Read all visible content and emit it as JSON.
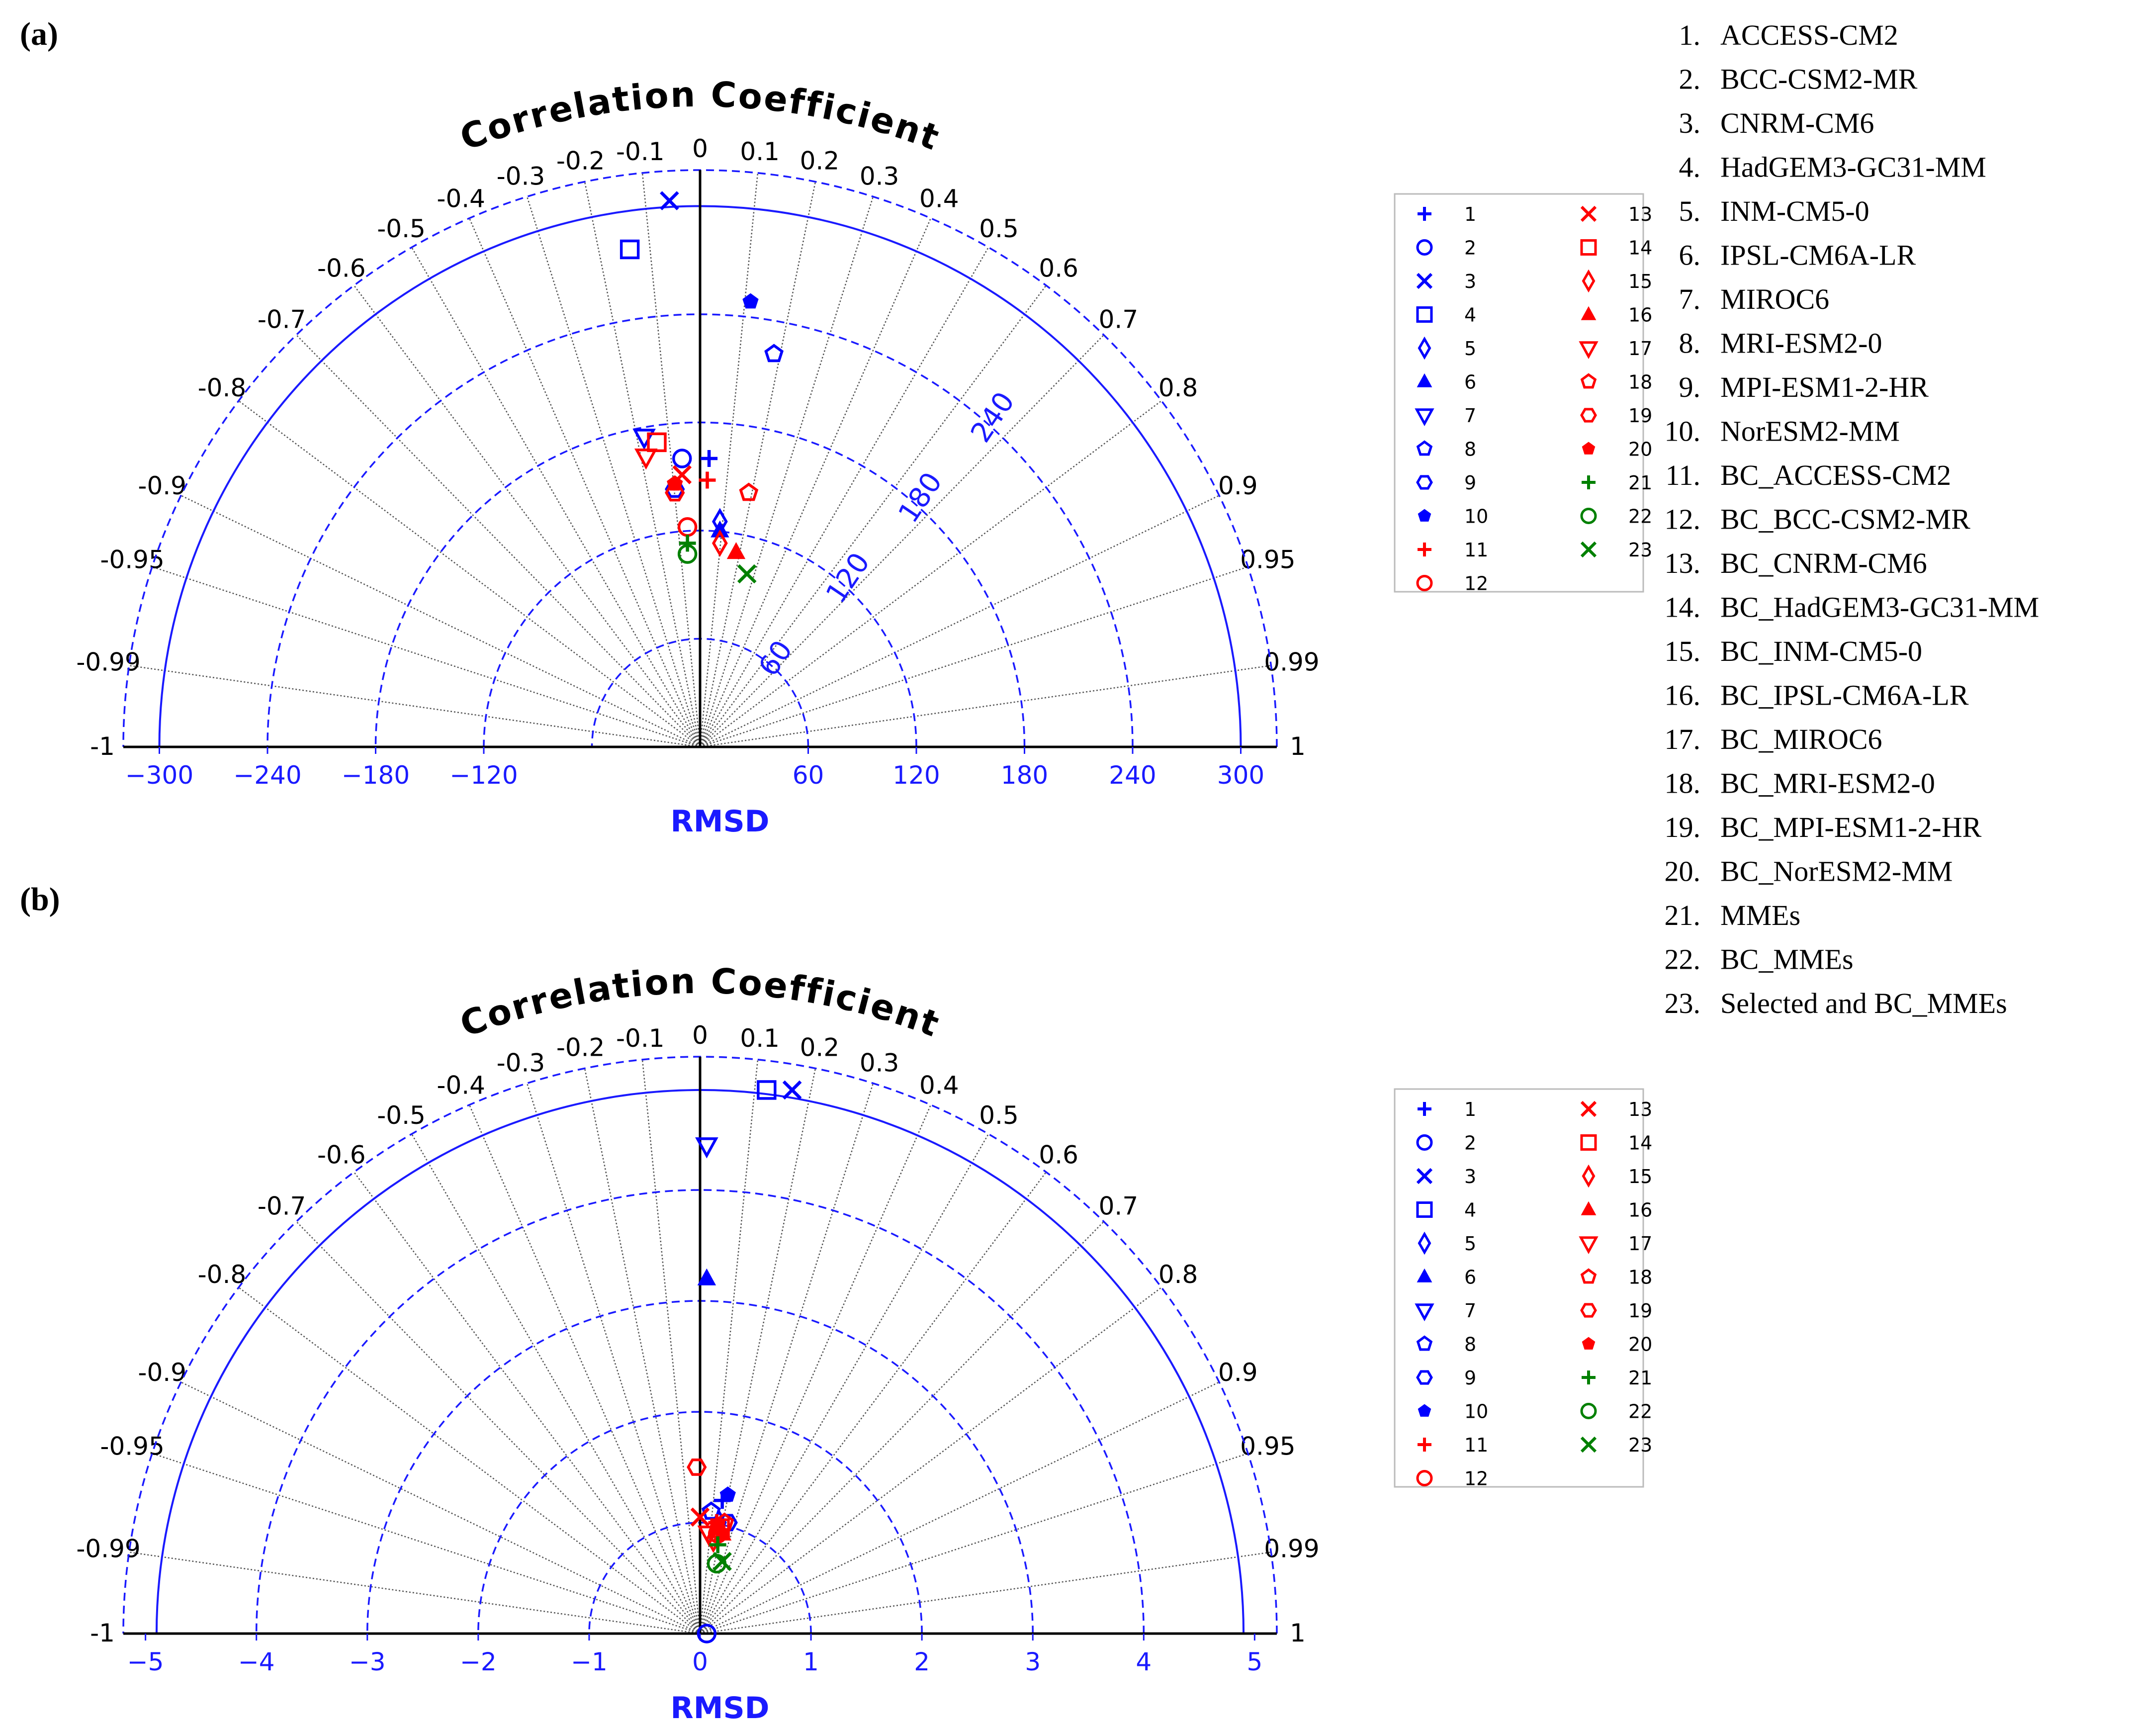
{
  "panels": [
    {
      "label": "(a)",
      "cc_title": "Correlation Coefficient",
      "rmsd_title": "RMSD",
      "arc_labels": [
        "60",
        "120",
        "180",
        "240"
      ]
    },
    {
      "label": "(b)",
      "cc_title": "Correlation Coefficient",
      "rmsd_title": "RMSD",
      "arc_labels": []
    }
  ],
  "model_list": [
    {
      "num": "1.",
      "name": "ACCESS-CM2"
    },
    {
      "num": "2.",
      "name": "BCC-CSM2-MR"
    },
    {
      "num": "3.",
      "name": "CNRM-CM6"
    },
    {
      "num": "4.",
      "name": "HadGEM3-GC31-MM"
    },
    {
      "num": "5.",
      "name": "INM-CM5-0"
    },
    {
      "num": "6.",
      "name": "IPSL-CM6A-LR"
    },
    {
      "num": "7.",
      "name": "MIROC6"
    },
    {
      "num": "8.",
      "name": "MRI-ESM2-0"
    },
    {
      "num": "9.",
      "name": "MPI-ESM1-2-HR"
    },
    {
      "num": "10.",
      "name": "NorESM2-MM"
    },
    {
      "num": "11.",
      "name": "BC_ACCESS-CM2"
    },
    {
      "num": "12.",
      "name": "BC_BCC-CSM2-MR"
    },
    {
      "num": "13.",
      "name": "BC_CNRM-CM6"
    },
    {
      "num": "14.",
      "name": "BC_HadGEM3-GC31-MM"
    },
    {
      "num": "15.",
      "name": "BC_INM-CM5-0"
    },
    {
      "num": "16.",
      "name": "BC_IPSL-CM6A-LR"
    },
    {
      "num": "17.",
      "name": "BC_MIROC6"
    },
    {
      "num": "18.",
      "name": "BC_MRI-ESM2-0"
    },
    {
      "num": "19.",
      "name": "BC_MPI-ESM1-2-HR"
    },
    {
      "num": "20.",
      "name": "BC_NorESM2-MM"
    },
    {
      "num": "21.",
      "name": "MMEs"
    },
    {
      "num": "22.",
      "name": "BC_MMEs"
    },
    {
      "num": "23.",
      "name": "Selected and BC_MMEs"
    }
  ],
  "legend": [
    {
      "label": "1",
      "marker": "plus",
      "color": "#0000ff"
    },
    {
      "label": "2",
      "marker": "circle",
      "color": "#0000ff"
    },
    {
      "label": "3",
      "marker": "x",
      "color": "#0000ff"
    },
    {
      "label": "4",
      "marker": "square",
      "color": "#0000ff"
    },
    {
      "label": "5",
      "marker": "diamond",
      "color": "#0000ff"
    },
    {
      "label": "6",
      "marker": "triangle-up",
      "color": "#0000ff"
    },
    {
      "label": "7",
      "marker": "triangle-down",
      "color": "#0000ff"
    },
    {
      "label": "8",
      "marker": "pentagon",
      "color": "#0000ff"
    },
    {
      "label": "9",
      "marker": "hexagon",
      "color": "#0000ff"
    },
    {
      "label": "10",
      "marker": "pentagon-filled",
      "color": "#0000ff"
    },
    {
      "label": "11",
      "marker": "plus",
      "color": "#ff0000"
    },
    {
      "label": "12",
      "marker": "circle",
      "color": "#ff0000"
    },
    {
      "label": "13",
      "marker": "x",
      "color": "#ff0000"
    },
    {
      "label": "14",
      "marker": "square",
      "color": "#ff0000"
    },
    {
      "label": "15",
      "marker": "diamond",
      "color": "#ff0000"
    },
    {
      "label": "16",
      "marker": "triangle-up",
      "color": "#ff0000"
    },
    {
      "label": "17",
      "marker": "triangle-down",
      "color": "#ff0000"
    },
    {
      "label": "18",
      "marker": "pentagon",
      "color": "#ff0000"
    },
    {
      "label": "19",
      "marker": "hexagon",
      "color": "#ff0000"
    },
    {
      "label": "20",
      "marker": "pentagon-filled",
      "color": "#ff0000"
    },
    {
      "label": "21",
      "marker": "plus",
      "color": "#008000"
    },
    {
      "label": "22",
      "marker": "circle",
      "color": "#008000"
    },
    {
      "label": "23",
      "marker": "x",
      "color": "#008000"
    }
  ],
  "chart_data": [
    {
      "type": "scatter",
      "subtype": "taylor-diagram",
      "title": "Correlation Coefficient",
      "xlabel": "RMSD",
      "std_max": 320,
      "std_ref_arc": 300,
      "std_dashed_arcs": [
        60,
        120,
        180,
        240,
        320
      ],
      "rmsd_arcs": [
        60,
        120,
        180,
        240
      ],
      "x_ticks": [
        "−300",
        "−240",
        "−180",
        "−120",
        "60",
        "120",
        "180",
        "240",
        "300"
      ],
      "x_tick_values": [
        -300,
        -240,
        -180,
        -120,
        60,
        120,
        180,
        240,
        300
      ],
      "cc_ticks": [
        "-1",
        "-0.99",
        "-0.95",
        "-0.9",
        "-0.8",
        "-0.7",
        "-0.6",
        "-0.5",
        "-0.4",
        "-0.3",
        "-0.2",
        "-0.1",
        "0",
        "0.1",
        "0.2",
        "0.3",
        "0.4",
        "0.5",
        "0.6",
        "0.7",
        "0.8",
        "0.9",
        "0.95",
        "0.99",
        "1"
      ],
      "cc_values": [
        -1,
        -0.99,
        -0.95,
        -0.9,
        -0.8,
        -0.7,
        -0.6,
        -0.5,
        -0.4,
        -0.3,
        -0.2,
        -0.1,
        0,
        0.1,
        0.2,
        0.3,
        0.4,
        0.5,
        0.6,
        0.7,
        0.8,
        0.9,
        0.95,
        0.99,
        1
      ],
      "grid": true,
      "legend_position": "right",
      "points": [
        {
          "id": 1,
          "x": 5,
          "y": 160
        },
        {
          "id": 2,
          "x": -10,
          "y": 160
        },
        {
          "id": 3,
          "x": -17,
          "y": 303
        },
        {
          "id": 4,
          "x": -39,
          "y": 276
        },
        {
          "id": 5,
          "x": 11,
          "y": 125
        },
        {
          "id": 6,
          "x": 11,
          "y": 120
        },
        {
          "id": 7,
          "x": -31,
          "y": 172
        },
        {
          "id": 8,
          "x": 41,
          "y": 218
        },
        {
          "id": 9,
          "x": -14,
          "y": 143
        },
        {
          "id": 10,
          "x": 28,
          "y": 247
        },
        {
          "id": 11,
          "x": 4,
          "y": 148
        },
        {
          "id": 12,
          "x": -7,
          "y": 122
        },
        {
          "id": 13,
          "x": -10,
          "y": 151
        },
        {
          "id": 14,
          "x": -24,
          "y": 169
        },
        {
          "id": 15,
          "x": 11,
          "y": 113
        },
        {
          "id": 16,
          "x": 20,
          "y": 108
        },
        {
          "id": 17,
          "x": -30,
          "y": 161
        },
        {
          "id": 18,
          "x": 27,
          "y": 141
        },
        {
          "id": 19,
          "x": -14,
          "y": 141
        },
        {
          "id": 20,
          "x": -14,
          "y": 146
        },
        {
          "id": 21,
          "x": -7,
          "y": 113
        },
        {
          "id": 22,
          "x": -7,
          "y": 107
        },
        {
          "id": 23,
          "x": 26,
          "y": 96
        }
      ]
    },
    {
      "type": "scatter",
      "subtype": "taylor-diagram",
      "title": "Correlation Coefficient",
      "xlabel": "RMSD",
      "std_max": 5.2,
      "std_ref_arc": 4.9,
      "std_dashed_arcs": [
        1,
        2,
        3,
        4,
        5.2
      ],
      "rmsd_arcs": [
        1,
        2,
        3,
        4
      ],
      "x_ticks": [
        "−5",
        "−4",
        "−3",
        "−2",
        "−1",
        "0",
        "1",
        "2",
        "3",
        "4",
        "5"
      ],
      "x_tick_values": [
        -5,
        -4,
        -3,
        -2,
        -1,
        0,
        1,
        2,
        3,
        4,
        5
      ],
      "cc_ticks": [
        "-1",
        "-0.99",
        "-0.95",
        "-0.9",
        "-0.8",
        "-0.7",
        "-0.6",
        "-0.5",
        "-0.4",
        "-0.3",
        "-0.2",
        "-0.1",
        "0",
        "0.1",
        "0.2",
        "0.3",
        "0.4",
        "0.5",
        "0.6",
        "0.7",
        "0.8",
        "0.9",
        "0.95",
        "0.99",
        "1"
      ],
      "cc_values": [
        -1,
        -0.99,
        -0.95,
        -0.9,
        -0.8,
        -0.7,
        -0.6,
        -0.5,
        -0.4,
        -0.3,
        -0.2,
        -0.1,
        0,
        0.1,
        0.2,
        0.3,
        0.4,
        0.5,
        0.6,
        0.7,
        0.8,
        0.9,
        0.95,
        0.99,
        1
      ],
      "grid": true,
      "legend_position": "right",
      "points": [
        {
          "id": 1,
          "x": 0.2,
          "y": 1.2
        },
        {
          "id": 2,
          "x": 0.06,
          "y": 0.0
        },
        {
          "id": 3,
          "x": 0.83,
          "y": 4.9
        },
        {
          "id": 4,
          "x": 0.6,
          "y": 4.9
        },
        {
          "id": 5,
          "x": 0.17,
          "y": 1.0
        },
        {
          "id": 6,
          "x": 0.06,
          "y": 3.2
        },
        {
          "id": 7,
          "x": 0.06,
          "y": 4.4
        },
        {
          "id": 8,
          "x": 0.1,
          "y": 1.1
        },
        {
          "id": 9,
          "x": 0.25,
          "y": 1.0
        },
        {
          "id": 10,
          "x": 0.25,
          "y": 1.25
        },
        {
          "id": 11,
          "x": 0.15,
          "y": 1.0
        },
        {
          "id": 12,
          "x": 0.16,
          "y": 0.9
        },
        {
          "id": 13,
          "x": 0.0,
          "y": 1.05
        },
        {
          "id": 14,
          "x": 0.18,
          "y": 0.95
        },
        {
          "id": 15,
          "x": 0.12,
          "y": 0.85
        },
        {
          "id": 16,
          "x": 0.2,
          "y": 0.9
        },
        {
          "id": 17,
          "x": 0.08,
          "y": 0.9
        },
        {
          "id": 18,
          "x": 0.22,
          "y": 1.0
        },
        {
          "id": 19,
          "x": -0.03,
          "y": 1.5
        },
        {
          "id": 20,
          "x": 0.16,
          "y": 0.95
        },
        {
          "id": 21,
          "x": 0.16,
          "y": 0.8
        },
        {
          "id": 22,
          "x": 0.15,
          "y": 0.63
        },
        {
          "id": 23,
          "x": 0.2,
          "y": 0.65
        }
      ]
    }
  ]
}
